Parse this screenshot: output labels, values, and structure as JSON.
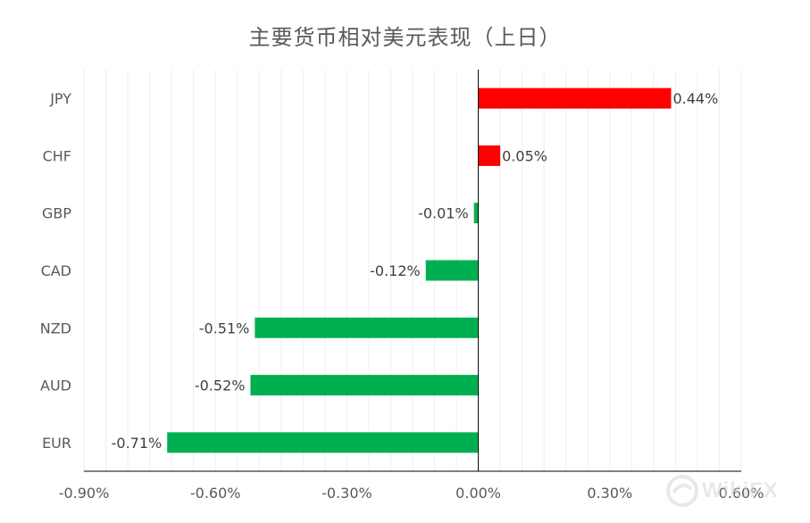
{
  "chart_data": {
    "type": "bar",
    "orientation": "horizontal",
    "title": "主要货币相对美元表现（上日）",
    "categories": [
      "JPY",
      "CHF",
      "GBP",
      "CAD",
      "NZD",
      "AUD",
      "EUR"
    ],
    "values": [
      0.44,
      0.05,
      -0.01,
      -0.12,
      -0.51,
      -0.52,
      -0.71
    ],
    "data_labels": [
      "0.44%",
      "0.05%",
      "-0.01%",
      "-0.12%",
      "-0.51%",
      "-0.52%",
      "-0.71%"
    ],
    "xlim": [
      -0.9,
      0.6
    ],
    "x_ticks": [
      -0.9,
      -0.6,
      -0.3,
      0.0,
      0.3,
      0.6
    ],
    "x_tick_labels": [
      "-0.90%",
      "-0.60%",
      "-0.30%",
      "0.00%",
      "0.30%",
      "0.60%"
    ],
    "xlabel": "",
    "ylabel": "",
    "grid": true,
    "legend": "none",
    "colors": {
      "positive": "#ff0000",
      "negative": "#00b050",
      "axis": "#000000",
      "grid": "#eeeeee",
      "text": "#404040"
    }
  },
  "watermark": {
    "text": "WikiFX"
  }
}
